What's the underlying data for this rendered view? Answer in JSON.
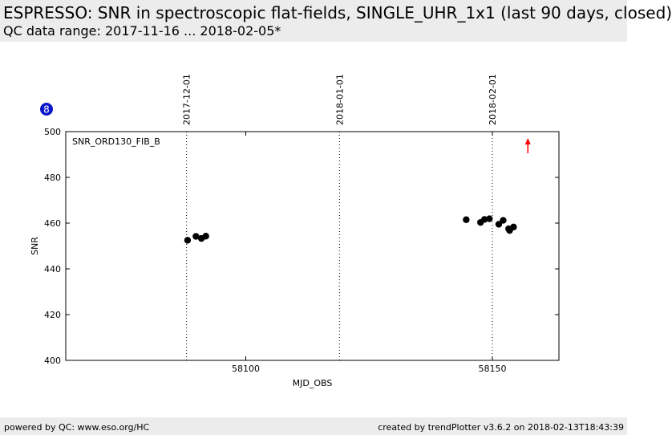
{
  "header": {
    "title": "ESPRESSO: SNR in spectroscopic flat-fields, SINGLE_UHR_1x1 (last 90 days, closed)",
    "subtitle": "QC data range: 2017-11-16 ... 2018-02-05*"
  },
  "footer": {
    "left": "powered by QC: www.eso.org/HC",
    "right": "created by trendPlotter v3.6.2 on 2018-02-13T18:43:39"
  },
  "badge": "8",
  "chart_data": {
    "type": "scatter",
    "xlabel": "MJD_OBS",
    "ylabel": "SNR",
    "panel_label": "SNR_ORD130_FIB_B",
    "xlim": [
      58063.5,
      58163.5
    ],
    "ylim": [
      400,
      500
    ],
    "x_ticks": [
      58100,
      58150
    ],
    "y_ticks": [
      400,
      420,
      440,
      460,
      480,
      500
    ],
    "date_markers": [
      {
        "label": "2017-12-01",
        "mjd": 58088
      },
      {
        "label": "2018-01-01",
        "mjd": 58119
      },
      {
        "label": "2018-02-01",
        "mjd": 58150
      }
    ],
    "grid": false,
    "point_color": "#000000",
    "arrow_color": "#ff0000",
    "points": [
      {
        "x": 58088.2,
        "y": 452.5
      },
      {
        "x": 58089.9,
        "y": 454.2
      },
      {
        "x": 58091.0,
        "y": 453.3
      },
      {
        "x": 58091.9,
        "y": 454.3
      },
      {
        "x": 58144.7,
        "y": 461.5
      },
      {
        "x": 58147.6,
        "y": 460.3
      },
      {
        "x": 58148.4,
        "y": 461.6
      },
      {
        "x": 58149.4,
        "y": 461.9
      },
      {
        "x": 58151.3,
        "y": 459.5
      },
      {
        "x": 58152.2,
        "y": 461.2
      },
      {
        "x": 58153.3,
        "y": 457.5
      },
      {
        "x": 58153.5,
        "y": 456.8
      },
      {
        "x": 58154.3,
        "y": 458.3
      }
    ],
    "out_of_range_markers": [
      {
        "x": 58157.2,
        "direction": "up"
      }
    ]
  }
}
